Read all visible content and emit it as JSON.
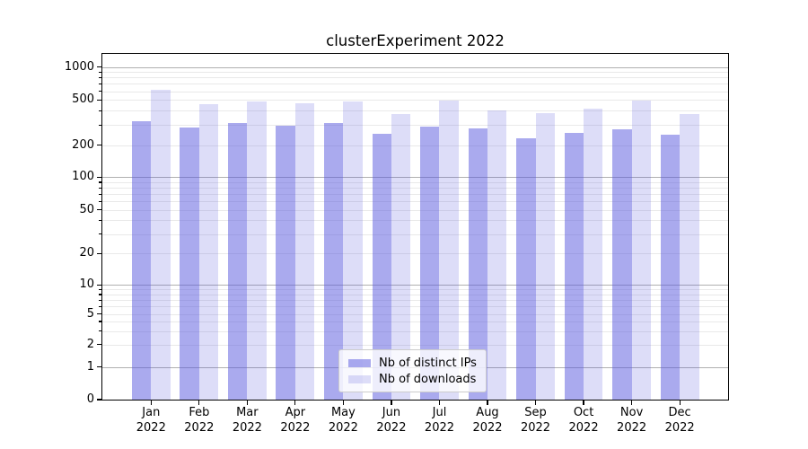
{
  "figure": {
    "title": "clusterExperiment 2022"
  },
  "chart_data": {
    "type": "bar",
    "title": "clusterExperiment 2022",
    "x_categories": [
      "Jan",
      "Feb",
      "Mar",
      "Apr",
      "May",
      "Jun",
      "Jul",
      "Aug",
      "Sep",
      "Oct",
      "Nov",
      "Dec"
    ],
    "x_year_label": "2022",
    "series": [
      {
        "name": "Nb of distinct IPs",
        "color": "rgba(85,85,221,0.5)",
        "values": [
          325,
          285,
          310,
          295,
          310,
          250,
          290,
          280,
          230,
          255,
          275,
          245
        ]
      },
      {
        "name": "Nb of downloads",
        "color": "rgba(85,85,221,0.2)",
        "values": [
          615,
          460,
          485,
          470,
          485,
          375,
          495,
          405,
          380,
          415,
          495,
          375
        ]
      }
    ],
    "y_axis": {
      "scale": "symlog",
      "tick_labels": [
        "0",
        "1",
        "2",
        "5",
        "10",
        "20",
        "50",
        "100",
        "200",
        "500",
        "1000"
      ],
      "ylim": [
        0,
        1300
      ]
    },
    "grid": {
      "major_color": "#b0b0b0",
      "minor_color": "#e9e9e9"
    },
    "legend": {
      "position": "lower center",
      "entries": [
        "Nb of distinct IPs",
        "Nb of downloads"
      ]
    }
  }
}
